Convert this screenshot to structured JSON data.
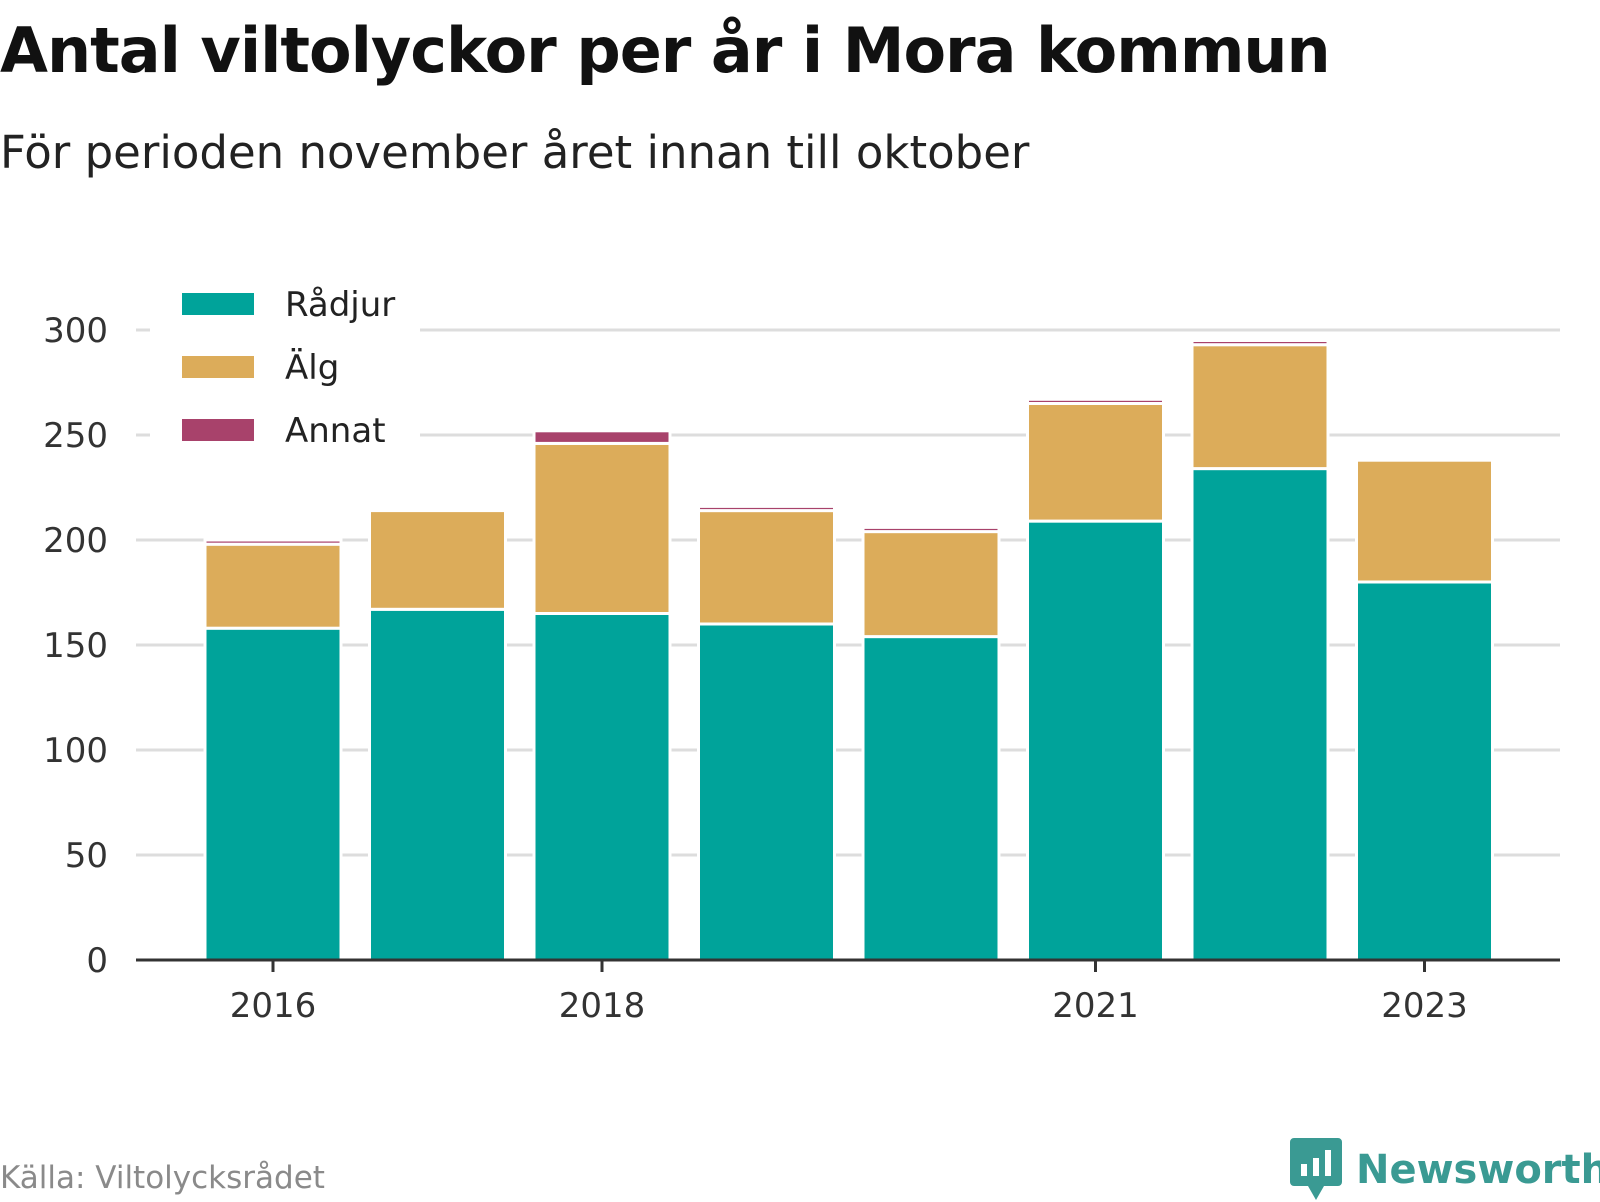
{
  "title": "Antal viltolyckor per år i Mora kommun",
  "subtitle": "För perioden november året innan till oktober",
  "source": "Källa: Viltolycksrådet",
  "brand": {
    "name": "Newsworthy",
    "icon": "newsworthy-logo-icon",
    "color": "#3a9a93"
  },
  "chart_data": {
    "type": "bar",
    "stacked": true,
    "categories": [
      "2016",
      "2017",
      "2018",
      "2019",
      "2020",
      "2021",
      "2022",
      "2023"
    ],
    "x_tick_labels": [
      "2016",
      "2018",
      "2021",
      "2023"
    ],
    "series": [
      {
        "name": "Rådjur",
        "color": "#00a39a",
        "values": [
          158,
          167,
          165,
          160,
          154,
          209,
          234,
          180
        ]
      },
      {
        "name": "Älg",
        "color": "#dcac5a",
        "values": [
          40,
          47,
          81,
          54,
          50,
          56,
          59,
          58
        ]
      },
      {
        "name": "Annat",
        "color": "#a8426b",
        "values": [
          2,
          0,
          6,
          2,
          2,
          2,
          2,
          0
        ]
      }
    ],
    "ylim": [
      0,
      300
    ],
    "yticks": [
      0,
      50,
      100,
      150,
      200,
      250,
      300
    ],
    "grid": true,
    "legend": "top-left",
    "xlabel": "",
    "ylabel": ""
  }
}
